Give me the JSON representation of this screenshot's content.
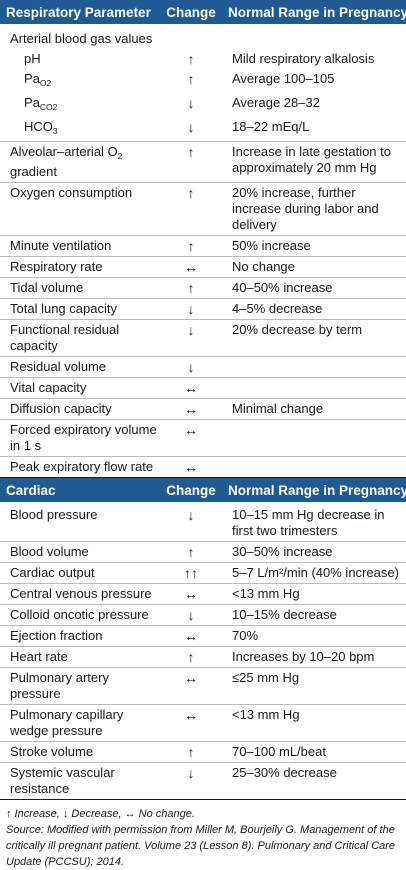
{
  "respiratory": {
    "headers": [
      "Respiratory Parameter",
      "Change",
      "Normal Range in Pregnancy"
    ],
    "group_label": "Arterial blood gas values",
    "rows": [
      {
        "name": "pH",
        "change": "↑",
        "range": "Mild respiratory alkalosis",
        "sub": true
      },
      {
        "name_main": "Pa",
        "name_sub": "O2",
        "change": "↑",
        "range": "Average 100–105",
        "sub": true
      },
      {
        "name_main": "Pa",
        "name_sub": "CO2",
        "change": "↓",
        "range": "Average 28–32",
        "sub": true
      },
      {
        "name_main": "HCO",
        "name_sub": "3",
        "change": "↓",
        "range": "18–22 mEq/L",
        "sub": true
      },
      {
        "name_main": "Alveolar–arterial O",
        "name_sub": "2",
        "name_tail": " gradient",
        "change": "↑",
        "range": "Increase in late gestation to approximately 20 mm Hg",
        "sep": true
      },
      {
        "name": "Oxygen consumption",
        "change": "↑",
        "range": "20% increase, further increase during labor and delivery",
        "sep": true
      },
      {
        "name": "Minute ventilation",
        "change": "↑",
        "range": "50% increase",
        "sep": true
      },
      {
        "name": "Respiratory rate",
        "change": "↔",
        "range": "No change",
        "sep": true
      },
      {
        "name": "Tidal volume",
        "change": "↑",
        "range": "40–50% increase",
        "sep": true
      },
      {
        "name": "Total lung capacity",
        "change": "↓",
        "range": "4–5% decrease",
        "sep": true
      },
      {
        "name": "Functional residual capacity",
        "change": "↓",
        "range": "20% decrease by term",
        "sep": true
      },
      {
        "name": "Residual volume",
        "change": "↓",
        "range": "",
        "sep": true
      },
      {
        "name": "Vital capacity",
        "change": "↔",
        "range": "",
        "sep": true
      },
      {
        "name": "Diffusion capacity",
        "change": "↔",
        "range": "Minimal change",
        "sep": true
      },
      {
        "name": "Forced expiratory volume in 1 s",
        "change": "↔",
        "range": "",
        "sep": true
      },
      {
        "name": "Peak expiratory flow rate",
        "change": "↔",
        "range": "",
        "sep": true
      }
    ]
  },
  "cardiac": {
    "headers": [
      "Cardiac",
      "Change",
      "Normal Range in Pregnancy"
    ],
    "rows": [
      {
        "name": "Blood pressure",
        "change": "↓",
        "range": "10–15 mm Hg decrease in first two trimesters"
      },
      {
        "name": "Blood volume",
        "change": "↑",
        "range": "30–50% increase",
        "sep": true
      },
      {
        "name": "Cardiac output",
        "change": "↑↑",
        "range": "5–7 L/m²/min (40% increase)",
        "sep": true
      },
      {
        "name": "Central venous pressure",
        "change": "↔",
        "range": "<13 mm Hg",
        "sep": true
      },
      {
        "name": "Colloid oncotic pressure",
        "change": "↓",
        "range": "10–15% decrease",
        "sep": true
      },
      {
        "name": "Ejection fraction",
        "change": "↔",
        "range": "70%",
        "sep": true
      },
      {
        "name": "Heart rate",
        "change": "↑",
        "range": "Increases by 10–20 bpm",
        "sep": true
      },
      {
        "name": "Pulmonary artery pressure",
        "change": "↔",
        "range": "≤25 mm Hg",
        "sep": true
      },
      {
        "name": "Pulmonary capillary wedge pressure",
        "change": "↔",
        "range": "<13 mm Hg",
        "sep": true
      },
      {
        "name": "Stroke volume",
        "change": "↑",
        "range": "70–100 mL/beat",
        "sep": true
      },
      {
        "name": "Systemic vascular resistance",
        "change": "↓",
        "range": "25–30% decrease",
        "sep": true
      }
    ]
  },
  "footnote": {
    "legend": "↑ Increase, ↓ Decrease, ↔ No change.",
    "source": "Source: Modified with permission from Miller M, Bourjeily G. Management of the critically ill pregnant patient. Volume 23 (Lesson 8). Pulmonary and Critical Care Update (PCCSU); 2014."
  },
  "colors": {
    "header_bg": "#1f5a95",
    "header_text": "#ffffff",
    "separator": "#bcbcbc"
  }
}
